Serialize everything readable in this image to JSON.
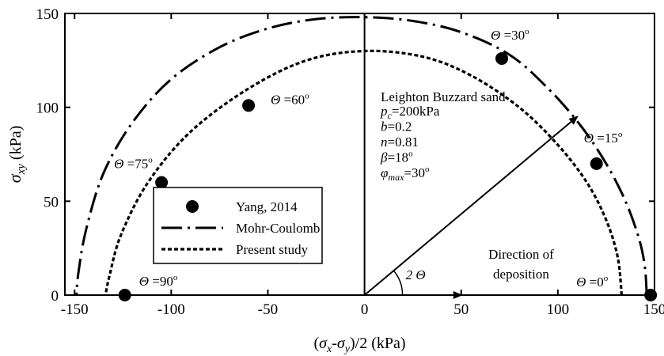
{
  "chart_data": {
    "type": "scatter",
    "xlim": [
      -155,
      150
    ],
    "ylim": [
      0,
      150
    ],
    "xticks": [
      -150,
      -100,
      -50,
      0,
      50,
      100,
      150
    ],
    "yticks": [
      0,
      50,
      100,
      150
    ],
    "xticks_labels": [
      "-150",
      "-100",
      "-50",
      "0",
      "50",
      "100",
      "150"
    ],
    "yticks_labels": [
      "0",
      "50",
      "100",
      "150"
    ],
    "xlabel": {
      "pre": "(",
      "s1": "σ",
      "sub1": "x",
      "mid": "-",
      "s2": "σ",
      "sub2": "y",
      "post": ")/2 (kPa)"
    },
    "ylabel": {
      "sym": "σ",
      "sub": "xy",
      "post": " (kPa)"
    },
    "grid": false,
    "legend_position": "lower-left",
    "series": [
      {
        "name": "Yang, 2014",
        "style": "marker",
        "points": [
          {
            "x": 148,
            "y": 0
          },
          {
            "x": 120,
            "y": 70
          },
          {
            "x": 71,
            "y": 126
          },
          {
            "x": -60,
            "y": 101
          },
          {
            "x": -105,
            "y": 60
          },
          {
            "x": -124,
            "y": 0
          }
        ]
      },
      {
        "name": "Mohr-Coulomb",
        "style": "dash-dot",
        "points": [
          {
            "x": 146,
            "y": 0
          },
          {
            "x": 145,
            "y": 15
          },
          {
            "x": 142,
            "y": 30
          },
          {
            "x": 135,
            "y": 50
          },
          {
            "x": 125,
            "y": 70
          },
          {
            "x": 112,
            "y": 90
          },
          {
            "x": 95,
            "y": 110
          },
          {
            "x": 75,
            "y": 128
          },
          {
            "x": 50,
            "y": 140
          },
          {
            "x": 25,
            "y": 146
          },
          {
            "x": 0,
            "y": 148
          },
          {
            "x": -25,
            "y": 147
          },
          {
            "x": -50,
            "y": 142
          },
          {
            "x": -75,
            "y": 132
          },
          {
            "x": -100,
            "y": 115
          },
          {
            "x": -120,
            "y": 92
          },
          {
            "x": -135,
            "y": 65
          },
          {
            "x": -144,
            "y": 35
          },
          {
            "x": -148,
            "y": 12
          },
          {
            "x": -149,
            "y": 0
          }
        ]
      },
      {
        "name": "Present study",
        "style": "dotted",
        "points": [
          {
            "x": 133,
            "y": 0
          },
          {
            "x": 131,
            "y": 20
          },
          {
            "x": 125,
            "y": 40
          },
          {
            "x": 115,
            "y": 60
          },
          {
            "x": 100,
            "y": 80
          },
          {
            "x": 80,
            "y": 100
          },
          {
            "x": 55,
            "y": 117
          },
          {
            "x": 30,
            "y": 127
          },
          {
            "x": 0,
            "y": 130
          },
          {
            "x": -30,
            "y": 125
          },
          {
            "x": -60,
            "y": 110
          },
          {
            "x": -90,
            "y": 87
          },
          {
            "x": -112,
            "y": 60
          },
          {
            "x": -126,
            "y": 32
          },
          {
            "x": -132,
            "y": 10
          },
          {
            "x": -134,
            "y": 0
          }
        ]
      }
    ],
    "theta_labels": [
      {
        "at": [
          -124,
          0
        ],
        "dx": 18,
        "dy": -12,
        "pre": "Θ",
        "post": " =90",
        "deg": "o"
      },
      {
        "at": [
          -105,
          60
        ],
        "dx": -60,
        "dy": -18,
        "pre": "Θ",
        "post": " =75",
        "deg": "o"
      },
      {
        "at": [
          -60,
          101
        ],
        "dx": 28,
        "dy": -2,
        "pre": "Θ",
        "post": " =60",
        "deg": "o"
      },
      {
        "at": [
          71,
          126
        ],
        "dx": -14,
        "dy": -24,
        "pre": "Θ",
        "post": " =30",
        "deg": "o"
      },
      {
        "at": [
          120,
          70
        ],
        "dx": -16,
        "dy": -27,
        "pre": "Θ",
        "post": " =15",
        "deg": "o"
      },
      {
        "at": [
          148,
          0
        ],
        "dx": -94,
        "dy": -11,
        "pre": "Θ",
        "post": " =0",
        "deg": "o"
      }
    ],
    "material": {
      "title": "Leighton Buzzard sand",
      "params": [
        {
          "sym": "p",
          "sub": "c",
          "val": "=200kPa",
          "sup": ""
        },
        {
          "sym": "b",
          "sub": "",
          "val": "=0.2",
          "sup": ""
        },
        {
          "sym": "n",
          "sub": "",
          "val": "=0.81",
          "sup": ""
        },
        {
          "sym": "β",
          "sub": "",
          "val": "=18",
          "sup": "o"
        },
        {
          "sym": "φ",
          "sub": "max",
          "val": "=30",
          "sup": "o"
        }
      ]
    },
    "arrows": [
      {
        "from": [
          0,
          0
        ],
        "to": [
          110,
          95
        ]
      },
      {
        "from": [
          0,
          0
        ],
        "to": [
          50,
          0
        ]
      }
    ],
    "angle_label": {
      "num": "2",
      "sym": "Θ"
    },
    "direction_label": [
      "Direction of",
      "deposition"
    ]
  }
}
